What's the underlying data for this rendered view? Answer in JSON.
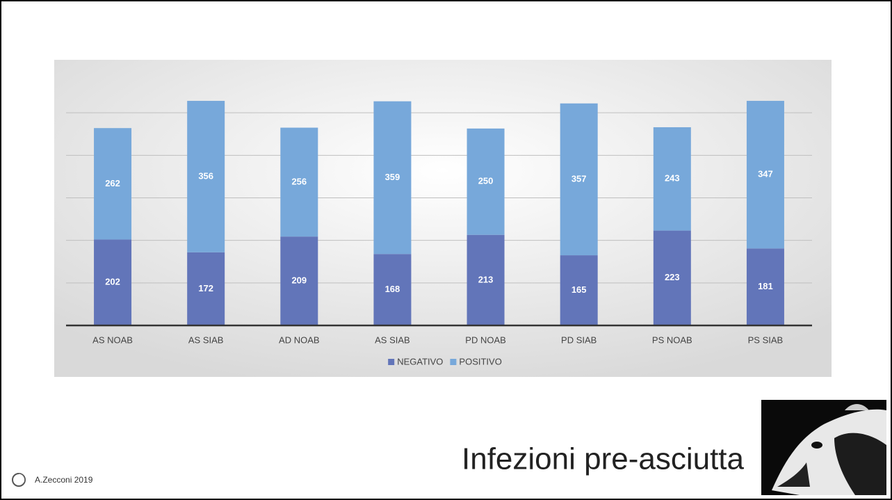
{
  "chart_data": {
    "type": "stacked-bar",
    "categories": [
      "AS NOAB",
      "AS SIAB",
      "AD NOAB",
      "AS SIAB",
      "PD NOAB",
      "PD SIAB",
      "PS NOAB",
      "PS SIAB"
    ],
    "series": [
      {
        "name": "NEGATIVO",
        "color": "#6275b9",
        "values": [
          202,
          172,
          209,
          168,
          213,
          165,
          223,
          181
        ]
      },
      {
        "name": "POSITIVO",
        "color": "#77a8da",
        "values": [
          262,
          356,
          256,
          359,
          250,
          357,
          243,
          347
        ]
      }
    ],
    "ylim": [
      0,
      600
    ],
    "yticks": [
      0,
      100,
      200,
      300,
      400,
      500
    ],
    "grid": true,
    "legend": "bottom"
  },
  "slide": {
    "title": "Infezioni pre-asciutta",
    "footer": "A.Zecconi 2019"
  }
}
